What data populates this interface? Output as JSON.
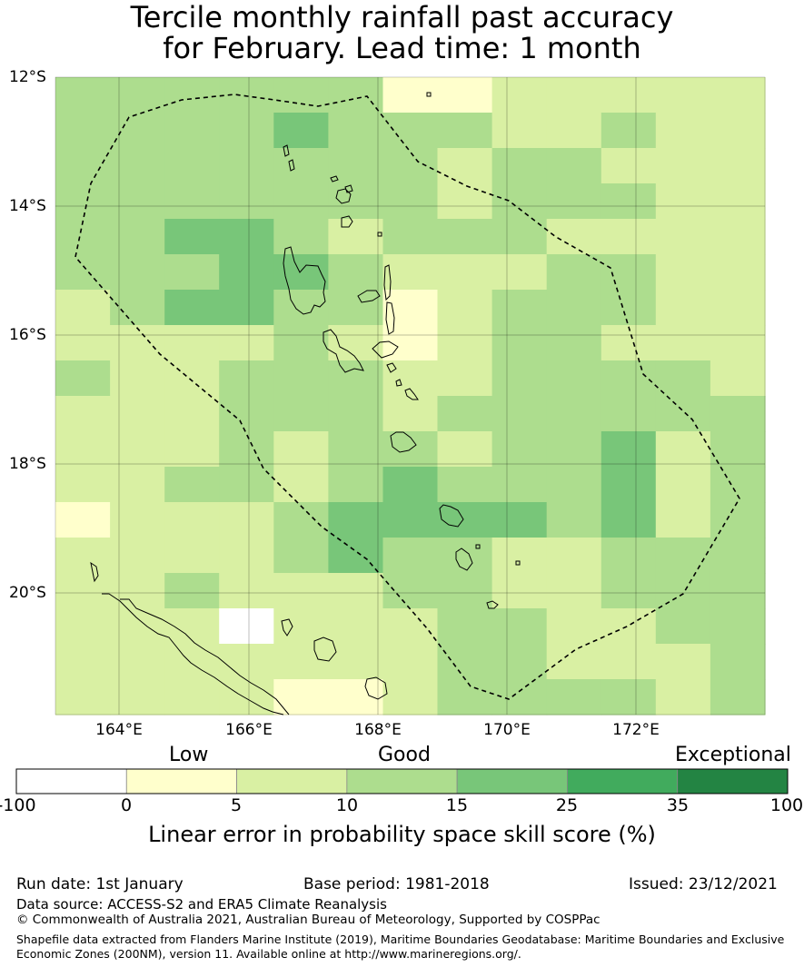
{
  "title": {
    "line1": "Tercile monthly rainfall past accuracy",
    "line2": "for February. Lead time: 1 month"
  },
  "map": {
    "lat_labels": [
      "12°S",
      "14°S",
      "16°S",
      "18°S",
      "20°S"
    ],
    "lon_labels": [
      "164°E",
      "166°E",
      "168°E",
      "170°E",
      "172°E"
    ],
    "boundary_style": "dashed"
  },
  "legend": {
    "categories": [
      "Low",
      "Good",
      "Exceptional"
    ],
    "bins": [
      {
        "from": -100,
        "to": 0,
        "color": "#ffffff"
      },
      {
        "from": 0,
        "to": 5,
        "color": "#ffffcc"
      },
      {
        "from": 5,
        "to": 10,
        "color": "#d9f0a3"
      },
      {
        "from": 10,
        "to": 15,
        "color": "#addd8e"
      },
      {
        "from": 15,
        "to": 25,
        "color": "#78c679"
      },
      {
        "from": 25,
        "to": 35,
        "color": "#41ab5d"
      },
      {
        "from": 35,
        "to": 100,
        "color": "#238443"
      }
    ],
    "tick_labels": [
      "-100",
      "0",
      "5",
      "10",
      "15",
      "25",
      "35",
      "100"
    ],
    "title": "Linear error in probability space skill score (%)"
  },
  "footer": {
    "run_date": "Run date: 1st January",
    "base_period": "Base period: 1981-2018",
    "issued": "Issued: 23/12/2021",
    "data_source": "Data source: ACCESS-S2 and ERA5 Climate Reanalysis",
    "copyright": "© Commonwealth of Australia 2021, Australian Bureau of Meteorology, Supported by COSPPac",
    "shapefile_line1": "Shapefile data extracted from Flanders Marine Institute (2019), Maritime Boundaries Geodatabase: Maritime Boundaries and Exclusive",
    "shapefile_line2": "Economic Zones (200NM), version 11. Available online at http://www.marineregions.org/."
  },
  "grid": [
    "44444444511233322222",
    "4454455444443344322B",
    "44544444443344432222",
    "44444444443344442222",
    "44455543444343432222",
    "4444554433332444222",
    "24455544113444442224",
    "33333443113444433334",
    "43334444223444444224",
    "33334444334444444444",
    "33334434543444453444",
    "33344324554444453444",
    "13333345555554453444",
    "33333445544433344444",
    "33342233444433344444",
    "33330022334442224344",
    "33333222224442333444",
    "33332211124444443444",
    "44333221134444333444",
    "55344222244444544444",
    "445555222244445555555"
  ]
}
